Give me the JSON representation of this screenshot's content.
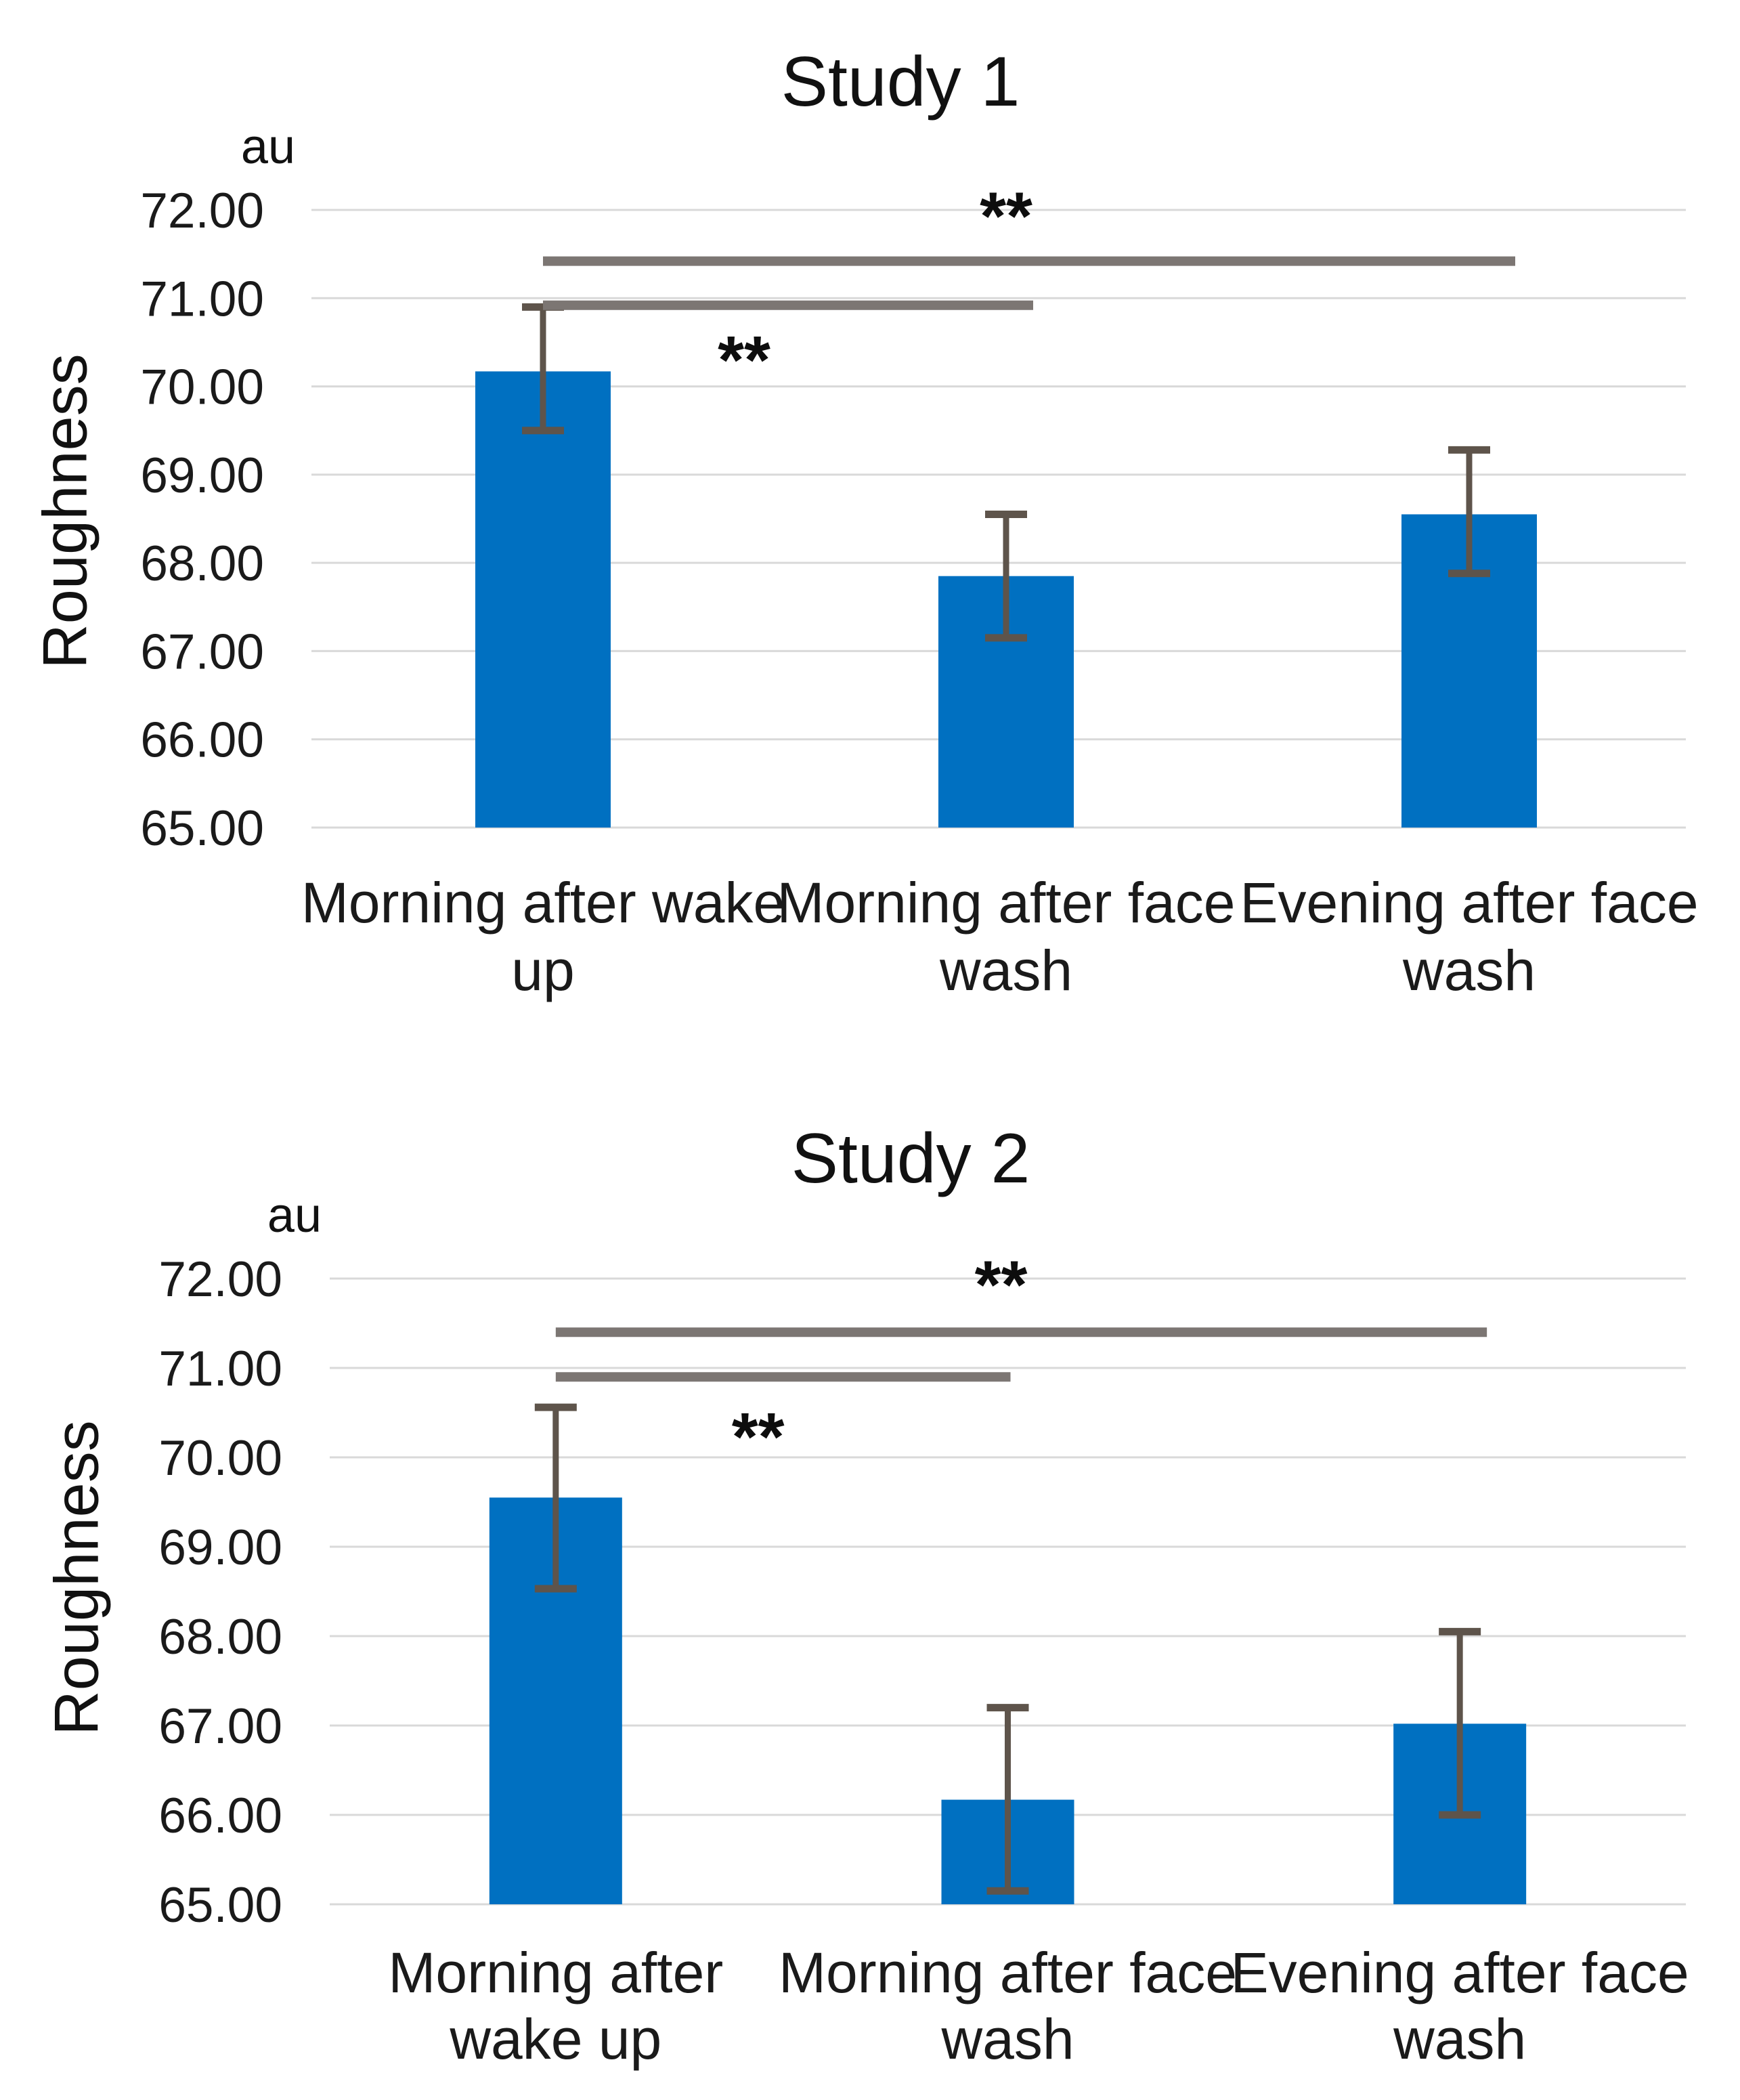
{
  "colors": {
    "bar": "#0070c1",
    "error_bar": "#5e544b",
    "sig_line": "#7c7673",
    "gridline": "#d9d9d9",
    "text": "#1a1a1a",
    "background": "#ffffff"
  },
  "chart_data": [
    {
      "type": "bar",
      "title": "Study 1",
      "unit_label": "au",
      "ylabel": "Roughness",
      "xlabel": "",
      "ylim": [
        65,
        72
      ],
      "grid": true,
      "legend": false,
      "ytick_values": [
        72,
        71,
        70,
        69,
        68,
        67,
        66,
        65
      ],
      "ytick_labels": [
        "72.00",
        "71.00",
        "70.00",
        "69.00",
        "68.00",
        "67.00",
        "66.00",
        "65.00"
      ],
      "categories": [
        "Morning after wake up",
        "Morning after face wash",
        "Evening after face wash"
      ],
      "category_lines": [
        [
          "Morning after wake",
          "up"
        ],
        [
          "Morning after face",
          "wash"
        ],
        [
          "Evening after face",
          "wash"
        ]
      ],
      "values": [
        70.17,
        67.85,
        68.55
      ],
      "error_low": [
        69.5,
        67.15,
        67.88
      ],
      "error_high": [
        70.9,
        68.55,
        69.28
      ],
      "significance": [
        {
          "between": [
            "Morning after wake up",
            "Evening after face wash"
          ],
          "from": 0,
          "to": 2,
          "line_y": 71.42,
          "label": "**",
          "label_y": 72.05
        },
        {
          "between": [
            "Morning after wake up",
            "Morning after face wash"
          ],
          "from": 0,
          "to": 1,
          "line_y": 70.92,
          "label": "**",
          "label_y": 70.42
        }
      ]
    },
    {
      "type": "bar",
      "title": "Study 2",
      "unit_label": "au",
      "ylabel": "Roughness",
      "xlabel": "",
      "ylim": [
        65,
        72
      ],
      "grid": true,
      "legend": false,
      "ytick_values": [
        72,
        71,
        70,
        69,
        68,
        67,
        66,
        65
      ],
      "ytick_labels": [
        "72.00",
        "71.00",
        "70.00",
        "69.00",
        "68.00",
        "67.00",
        "66.00",
        "65.00"
      ],
      "categories": [
        "Morning after wake up",
        "Morning after face wash",
        "Evening after face wash"
      ],
      "category_lines": [
        [
          "Morning after",
          "wake up"
        ],
        [
          "Morning after face",
          "wash"
        ],
        [
          "Evening after face",
          "wash"
        ]
      ],
      "values": [
        69.55,
        66.17,
        67.02
      ],
      "error_low": [
        68.53,
        65.15,
        66.0
      ],
      "error_high": [
        70.56,
        67.2,
        68.05
      ],
      "significance": [
        {
          "between": [
            "Morning after wake up",
            "Evening after face wash"
          ],
          "from": 0,
          "to": 2,
          "line_y": 71.4,
          "label": "**",
          "label_y": 72.05
        },
        {
          "between": [
            "Morning after wake up",
            "Morning after face wash"
          ],
          "from": 0,
          "to": 1,
          "line_y": 70.9,
          "label": "**",
          "label_y": 70.35
        }
      ]
    }
  ]
}
